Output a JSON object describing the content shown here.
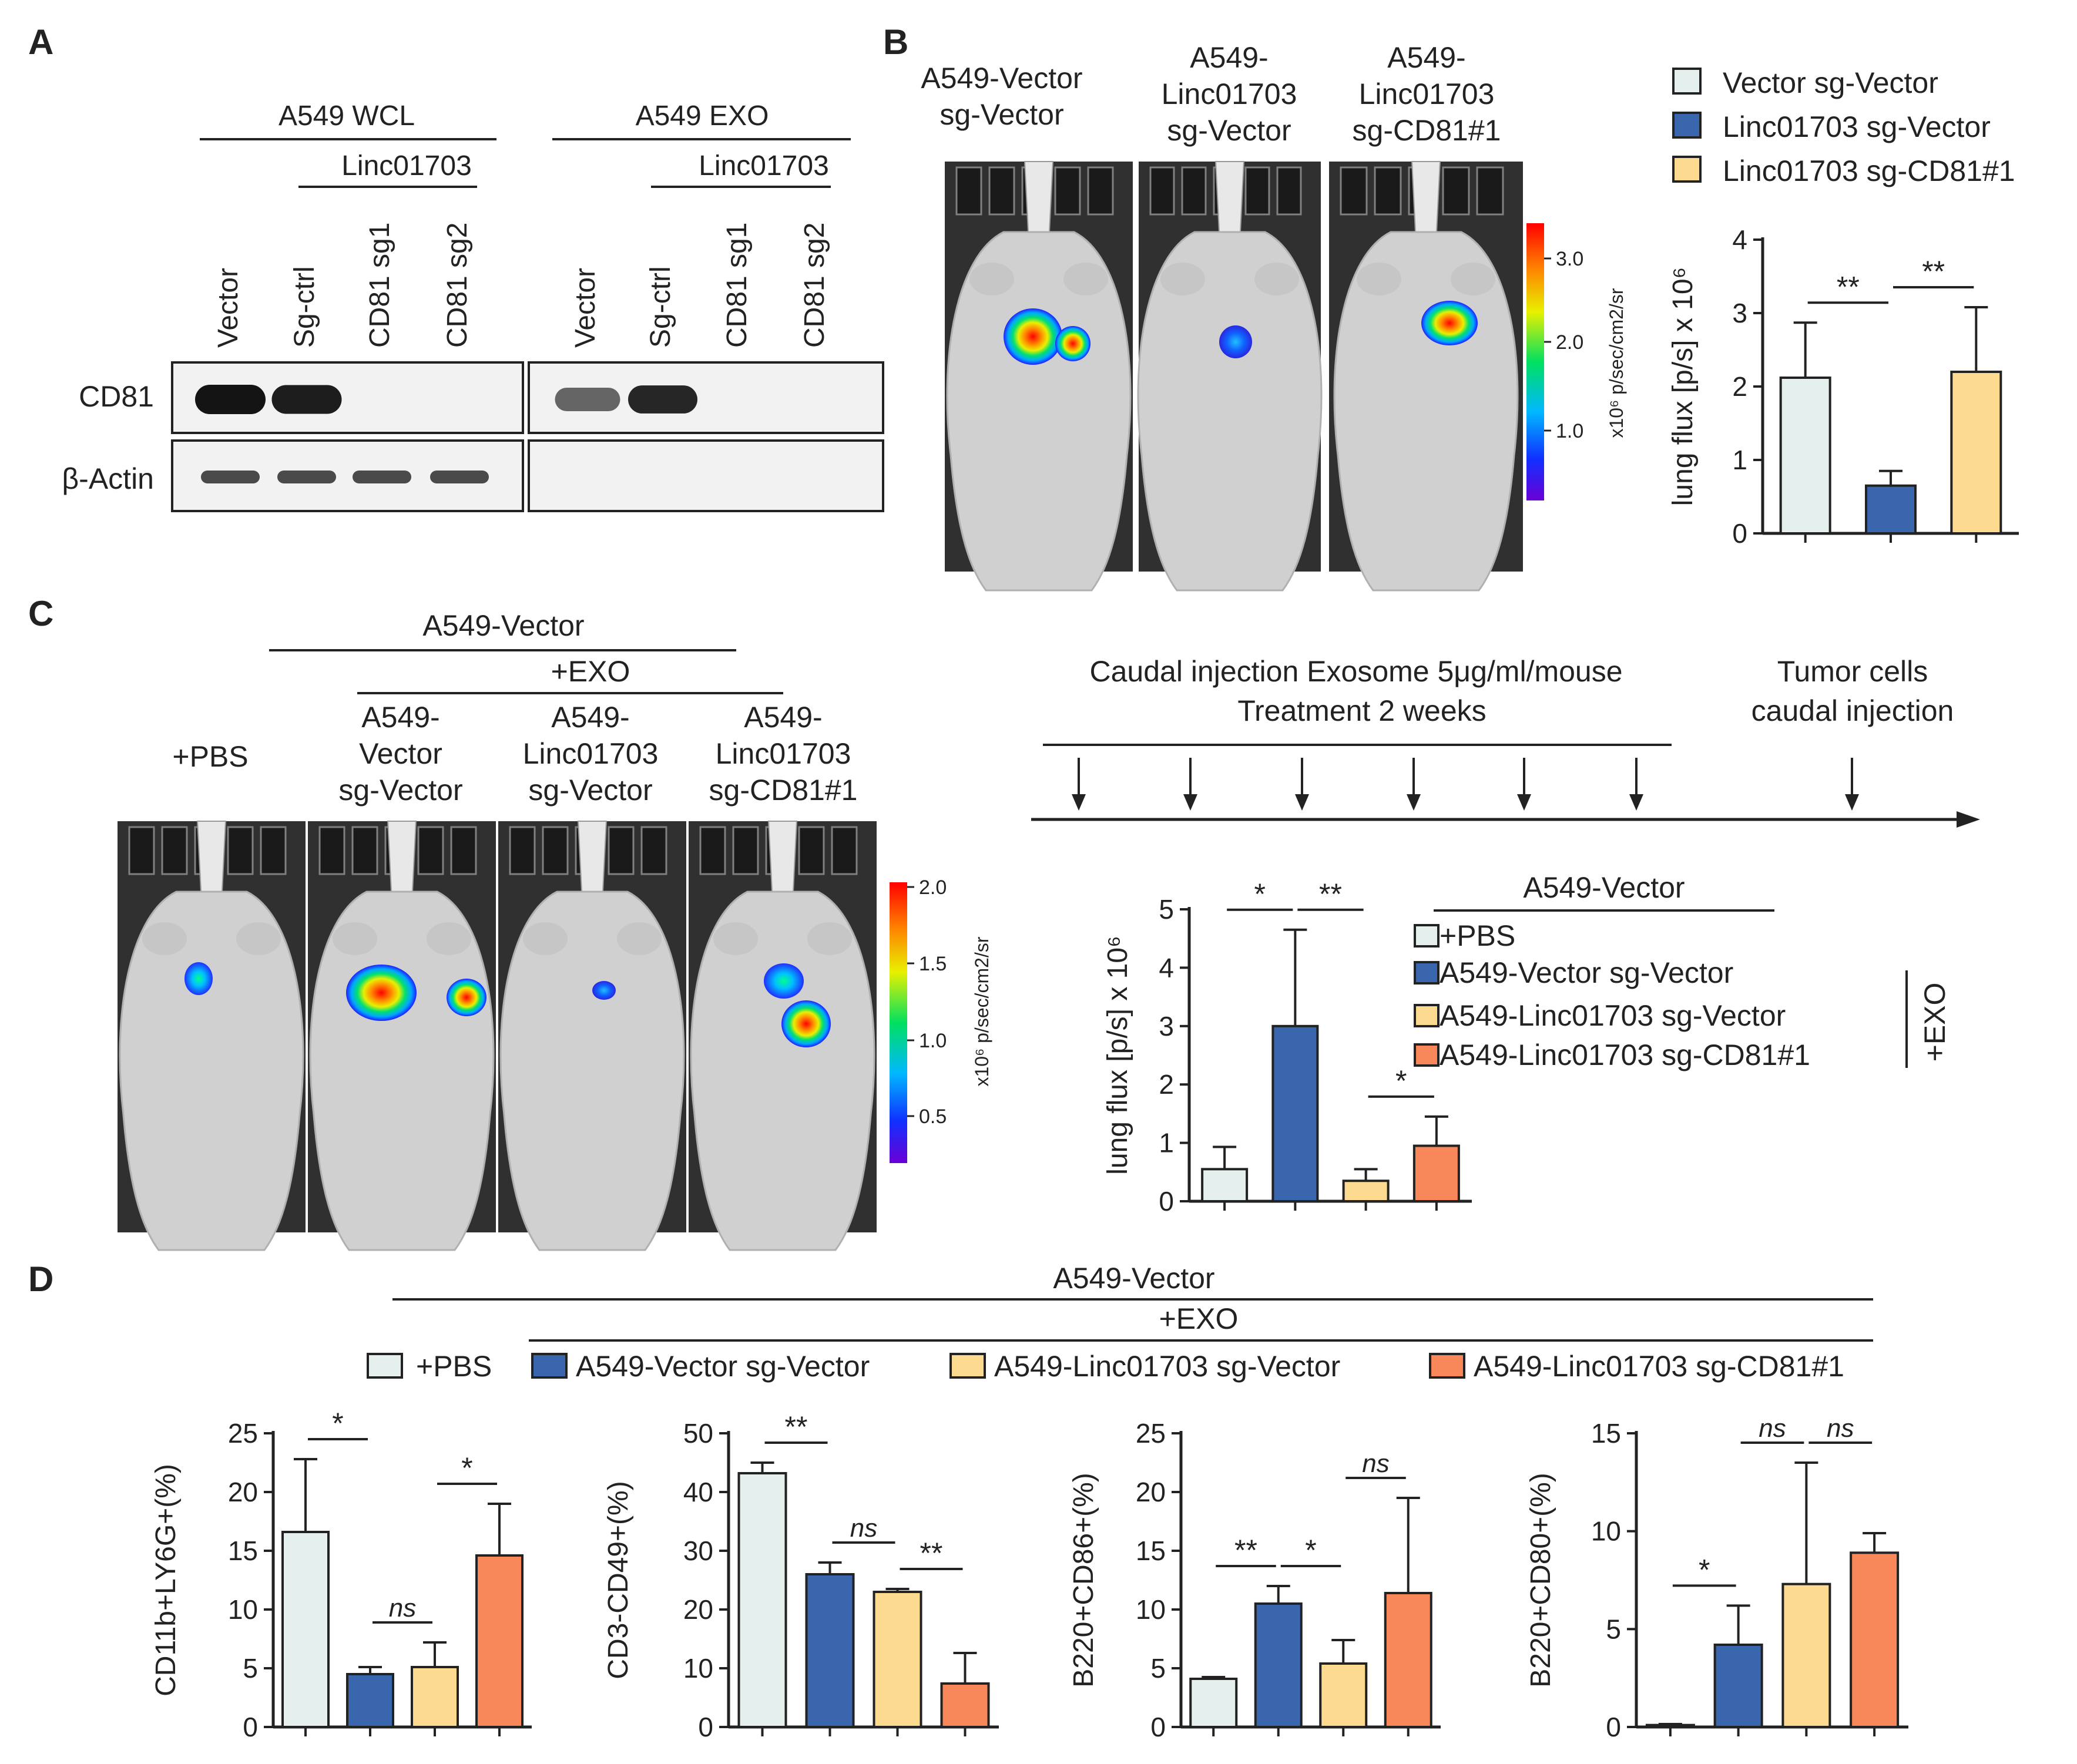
{
  "colors": {
    "pbs": "#E4EFEE",
    "vector_sg_vector": "#3A66AE",
    "linc_sg_vector": "#FCDA8F",
    "linc_sg_cd81": "#F8875A",
    "ink": "#222222",
    "blot_bg": "#F2F2F2",
    "band": "#1A1A1A",
    "mouse_bg": "#303030",
    "mouse_body": "#D0D0D0"
  },
  "panels": {
    "a": "A",
    "b": "B",
    "c": "C",
    "d": "D"
  },
  "panel_a": {
    "group_wcl": "A549 WCL",
    "group_exo": "A549 EXO",
    "subgroup": "Linc01703",
    "lanes": [
      "Vector",
      "Sg-ctrl",
      "CD81 sg1",
      "CD81 sg2",
      "Vector",
      "Sg-ctrl",
      "CD81 sg1",
      "CD81 sg2"
    ],
    "rows": [
      "CD81",
      "β-Actin"
    ],
    "band_levels": {
      "cd81": [
        1.0,
        0.95,
        0,
        0,
        0.55,
        0.9,
        0,
        0
      ],
      "actin": [
        0.7,
        0.7,
        0.7,
        0.7,
        0,
        0,
        0,
        0
      ]
    }
  },
  "panel_b": {
    "mouse_labels": [
      [
        "A549-Vector",
        "sg-Vector"
      ],
      [
        "A549-",
        "Linc01703",
        "sg-Vector"
      ],
      [
        "A549-",
        "Linc01703",
        "sg-CD81#1"
      ]
    ],
    "colorbar_label": "x10⁶ p/sec/cm2/sr",
    "colorbar_ticks": [
      "3.0",
      "2.0",
      "1.0"
    ],
    "legend": [
      "Vector sg-Vector",
      "Linc01703 sg-Vector",
      "Linc01703 sg-CD81#1"
    ]
  },
  "panel_c": {
    "header": "A549-Vector",
    "subheader": "+EXO",
    "mouse_labels": [
      [
        "+PBS"
      ],
      [
        "A549-",
        "Vector",
        "sg-Vector"
      ],
      [
        "A549-",
        "Linc01703",
        "sg-Vector"
      ],
      [
        "A549-",
        "Linc01703",
        "sg-CD81#1"
      ]
    ],
    "colorbar_label": "x10⁶ p/sec/cm2/sr",
    "colorbar_ticks": [
      "2.0",
      "1.5",
      "1.0",
      "0.5"
    ],
    "timeline_text1": "Caudal injection Exosome 5μg/ml/mouse",
    "timeline_text2": "Treatment 2 weeks",
    "timeline_text3": "Tumor cells",
    "timeline_text4": "caudal injection",
    "legend_header": "A549-Vector",
    "legend": [
      "+PBS",
      "A549-Vector sg-Vector",
      "A549-Linc01703 sg-Vector",
      "A549-Linc01703 sg-CD81#1"
    ],
    "exo_bracket": "+EXO"
  },
  "panel_d": {
    "header": "A549-Vector",
    "subheader": "+EXO",
    "legend": [
      "+PBS",
      "A549-Vector sg-Vector",
      "A549-Linc01703 sg-Vector",
      "A549-Linc01703 sg-CD81#1"
    ]
  },
  "chart_data": [
    {
      "id": "b",
      "type": "bar",
      "series_labels": [
        "Vector sg-Vector",
        "Linc01703 sg-Vector",
        "Linc01703 sg-CD81#1"
      ],
      "values": [
        2.12,
        0.65,
        2.2
      ],
      "errors": [
        0.75,
        0.2,
        0.88
      ],
      "ylabel": "lung flux [p/s] x 10⁶",
      "ylim": [
        0,
        4
      ],
      "yticks": [
        0,
        1,
        2,
        3,
        4
      ],
      "significance": [
        {
          "from": 0,
          "to": 1,
          "label": "**"
        },
        {
          "from": 1,
          "to": 2,
          "label": "**"
        }
      ]
    },
    {
      "id": "c",
      "type": "bar",
      "series_labels": [
        "+PBS",
        "A549-Vector sg-Vector",
        "A549-Linc01703 sg-Vector",
        "A549-Linc01703 sg-CD81#1"
      ],
      "values": [
        0.55,
        3.0,
        0.35,
        0.95
      ],
      "errors": [
        0.38,
        1.65,
        0.2,
        0.5
      ],
      "ylabel": "lung flux [p/s] x 10⁶",
      "ylim": [
        0,
        5
      ],
      "yticks": [
        0,
        1,
        2,
        3,
        4,
        5
      ],
      "significance": [
        {
          "from": 0,
          "to": 1,
          "label": "*"
        },
        {
          "from": 1,
          "to": 2,
          "label": "**"
        },
        {
          "from": 2,
          "to": 3,
          "label": "*"
        }
      ]
    },
    {
      "id": "d1",
      "type": "bar",
      "series_labels": [
        "+PBS",
        "A549-Vector sg-Vector",
        "A549-Linc01703 sg-Vector",
        "A549-Linc01703 sg-CD81#1"
      ],
      "values": [
        16.6,
        4.5,
        5.1,
        14.6
      ],
      "errors": [
        6.2,
        0.6,
        2.1,
        4.4
      ],
      "ylabel": "CD11b+LY6G+(%)",
      "ylim": [
        0,
        25
      ],
      "yticks": [
        0,
        5,
        10,
        15,
        20,
        25
      ],
      "significance": [
        {
          "from": 0,
          "to": 1,
          "label": "*"
        },
        {
          "from": 1,
          "to": 2,
          "label": "ns"
        },
        {
          "from": 2,
          "to": 3,
          "label": "*"
        }
      ]
    },
    {
      "id": "d2",
      "type": "bar",
      "series_labels": [
        "+PBS",
        "A549-Vector sg-Vector",
        "A549-Linc01703 sg-Vector",
        "A549-Linc01703 sg-CD81#1"
      ],
      "values": [
        43.2,
        26.0,
        23.0,
        7.4
      ],
      "errors": [
        1.8,
        2.0,
        0.5,
        5.2
      ],
      "ylabel": "CD3-CD49+(%)",
      "ylim": [
        0,
        50
      ],
      "yticks": [
        0,
        10,
        20,
        30,
        40,
        50
      ],
      "significance": [
        {
          "from": 0,
          "to": 1,
          "label": "**"
        },
        {
          "from": 1,
          "to": 2,
          "label": "ns"
        },
        {
          "from": 2,
          "to": 3,
          "label": "**"
        }
      ]
    },
    {
      "id": "d3",
      "type": "bar",
      "series_labels": [
        "+PBS",
        "A549-Vector sg-Vector",
        "A549-Linc01703 sg-Vector",
        "A549-Linc01703 sg-CD81#1"
      ],
      "values": [
        4.1,
        10.5,
        5.4,
        11.4
      ],
      "errors": [
        0.15,
        1.5,
        2.0,
        8.1
      ],
      "ylabel": "B220+CD86+(%)",
      "ylim": [
        0,
        25
      ],
      "yticks": [
        0,
        5,
        10,
        15,
        20,
        25
      ],
      "significance": [
        {
          "from": 0,
          "to": 1,
          "label": "**"
        },
        {
          "from": 1,
          "to": 2,
          "label": "*"
        },
        {
          "from": 2,
          "to": 3,
          "label": "ns"
        }
      ]
    },
    {
      "id": "d4",
      "type": "bar",
      "series_labels": [
        "+PBS",
        "A549-Vector sg-Vector",
        "A549-Linc01703 sg-Vector",
        "A549-Linc01703 sg-CD81#1"
      ],
      "values": [
        0.1,
        4.2,
        7.3,
        8.9
      ],
      "errors": [
        0.05,
        2.0,
        6.2,
        1.0
      ],
      "ylabel": "B220+CD80+(%)",
      "ylim": [
        0,
        15
      ],
      "yticks": [
        0,
        5,
        10,
        15
      ],
      "significance": [
        {
          "from": 0,
          "to": 1,
          "label": "*"
        },
        {
          "from": 1,
          "to": 2,
          "label": "ns"
        },
        {
          "from": 2,
          "to": 3,
          "label": "ns"
        }
      ]
    }
  ]
}
